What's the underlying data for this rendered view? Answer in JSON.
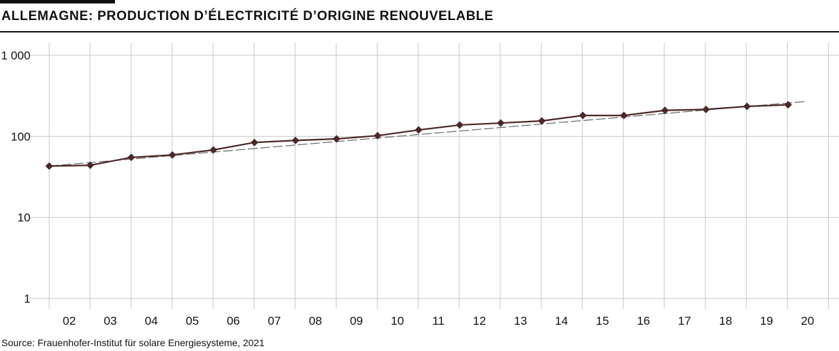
{
  "title": "ALLEMAGNE: PRODUCTION D’ÉLECTRICITÉ D’ORIGINE RENOUVELABLE",
  "source": "Source: Frauenhofer-Institut für solare Energiesysteme, 2021",
  "colors": {
    "series": "#4a2828",
    "trend": "#666666",
    "grid": "#c8c8c8"
  },
  "chart_data": {
    "type": "line",
    "x_tick_labels": [
      "02",
      "03",
      "04",
      "05",
      "06",
      "07",
      "08",
      "09",
      "10",
      "11",
      "12",
      "13",
      "14",
      "15",
      "16",
      "17",
      "18",
      "19",
      "20"
    ],
    "y_tick_labels": [
      "1 000",
      "100",
      "10",
      "1"
    ],
    "y_scale": "log",
    "ylim": [
      1,
      1000
    ],
    "grid": true,
    "series": [
      {
        "values": [
          43,
          44,
          55,
          59,
          68,
          84,
          89,
          93,
          102,
          120,
          138,
          146,
          155,
          181,
          181,
          209,
          215,
          234,
          245
        ],
        "marker": "diamond"
      }
    ],
    "trend": {
      "style": "dashed",
      "start": 43,
      "end": 270
    }
  }
}
